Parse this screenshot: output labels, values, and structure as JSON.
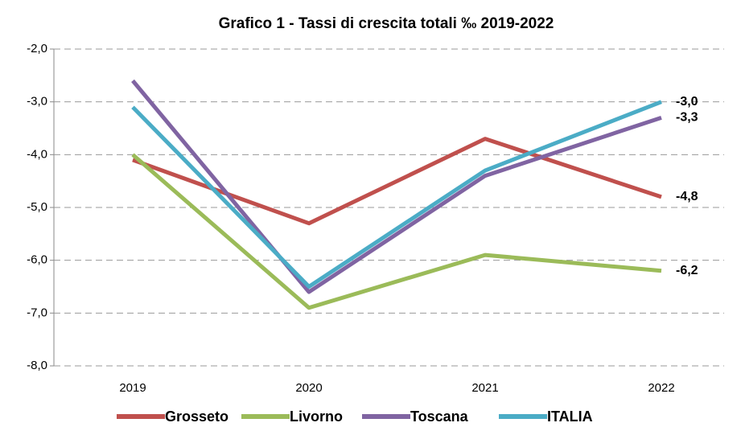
{
  "chart_data": {
    "type": "line",
    "title": "Grafico 1 - Tassi di crescita totali ‰ 2019-2022",
    "categories": [
      "2019",
      "2020",
      "2021",
      "2022"
    ],
    "series": [
      {
        "name": "Grosseto",
        "color": "#c0504d",
        "label_color": "#c00000",
        "values": [
          -4.1,
          -5.3,
          -3.7,
          -4.8
        ],
        "value_labels": [
          null,
          null,
          null,
          "-4,8"
        ]
      },
      {
        "name": "Livorno",
        "color": "#9bbb59",
        "label_color": "#77933c",
        "values": [
          -4.0,
          -6.9,
          -5.9,
          -6.2
        ],
        "value_labels": [
          null,
          null,
          null,
          "-6,2"
        ]
      },
      {
        "name": "Toscana",
        "color": "#8064a2",
        "label_color": "#7030a0",
        "values": [
          -2.6,
          -6.6,
          -4.4,
          -3.3
        ],
        "value_labels": [
          null,
          null,
          null,
          "-3,3"
        ]
      },
      {
        "name": "ITALIA",
        "color": "#4bacc6",
        "label_color": "#0070c0",
        "values": [
          -3.1,
          -6.5,
          -4.3,
          -3.0
        ],
        "value_labels": [
          null,
          null,
          null,
          "-3,0"
        ]
      }
    ],
    "ylim": [
      -8,
      -2
    ],
    "yticks": [
      {
        "value": -8,
        "label": "-8,0"
      },
      {
        "value": -7,
        "label": "-7,0"
      },
      {
        "value": -6,
        "label": "-6,0"
      },
      {
        "value": -5,
        "label": "-5,0"
      },
      {
        "value": -4,
        "label": "-4,0"
      },
      {
        "value": -3,
        "label": "-3,0"
      },
      {
        "value": -2,
        "label": "-2,0"
      }
    ],
    "grid": true,
    "legend": "bottom"
  }
}
